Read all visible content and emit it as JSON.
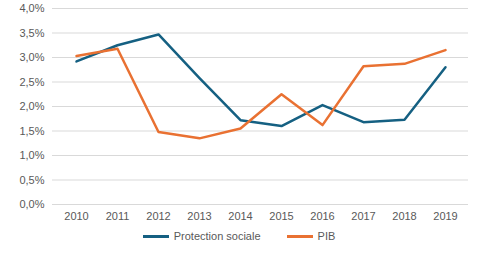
{
  "chart_data": {
    "type": "line",
    "categories": [
      "2010",
      "2011",
      "2012",
      "2013",
      "2014",
      "2015",
      "2016",
      "2017",
      "2018",
      "2019"
    ],
    "series": [
      {
        "name": "Protection sociale",
        "color": "#156082",
        "values": [
          2.92,
          3.25,
          3.47,
          2.58,
          1.72,
          1.6,
          2.03,
          1.68,
          1.73,
          2.8
        ]
      },
      {
        "name": "PIB",
        "color": "#E97132",
        "values": [
          3.03,
          3.18,
          1.48,
          1.35,
          1.55,
          2.25,
          1.62,
          2.82,
          2.87,
          3.15
        ]
      }
    ],
    "ylim": [
      0,
      4
    ],
    "yticks": [
      {
        "value": 0,
        "label": "0,0%"
      },
      {
        "value": 0.5,
        "label": "0,5%"
      },
      {
        "value": 1,
        "label": "1,0%"
      },
      {
        "value": 1.5,
        "label": "1,5%"
      },
      {
        "value": 2,
        "label": "2,0%"
      },
      {
        "value": 2.5,
        "label": "2,5%"
      },
      {
        "value": 3,
        "label": "3,0%"
      },
      {
        "value": 3.5,
        "label": "3,5%"
      },
      {
        "value": 4,
        "label": "4,0%"
      }
    ],
    "grid": true,
    "legend": "bottom"
  }
}
